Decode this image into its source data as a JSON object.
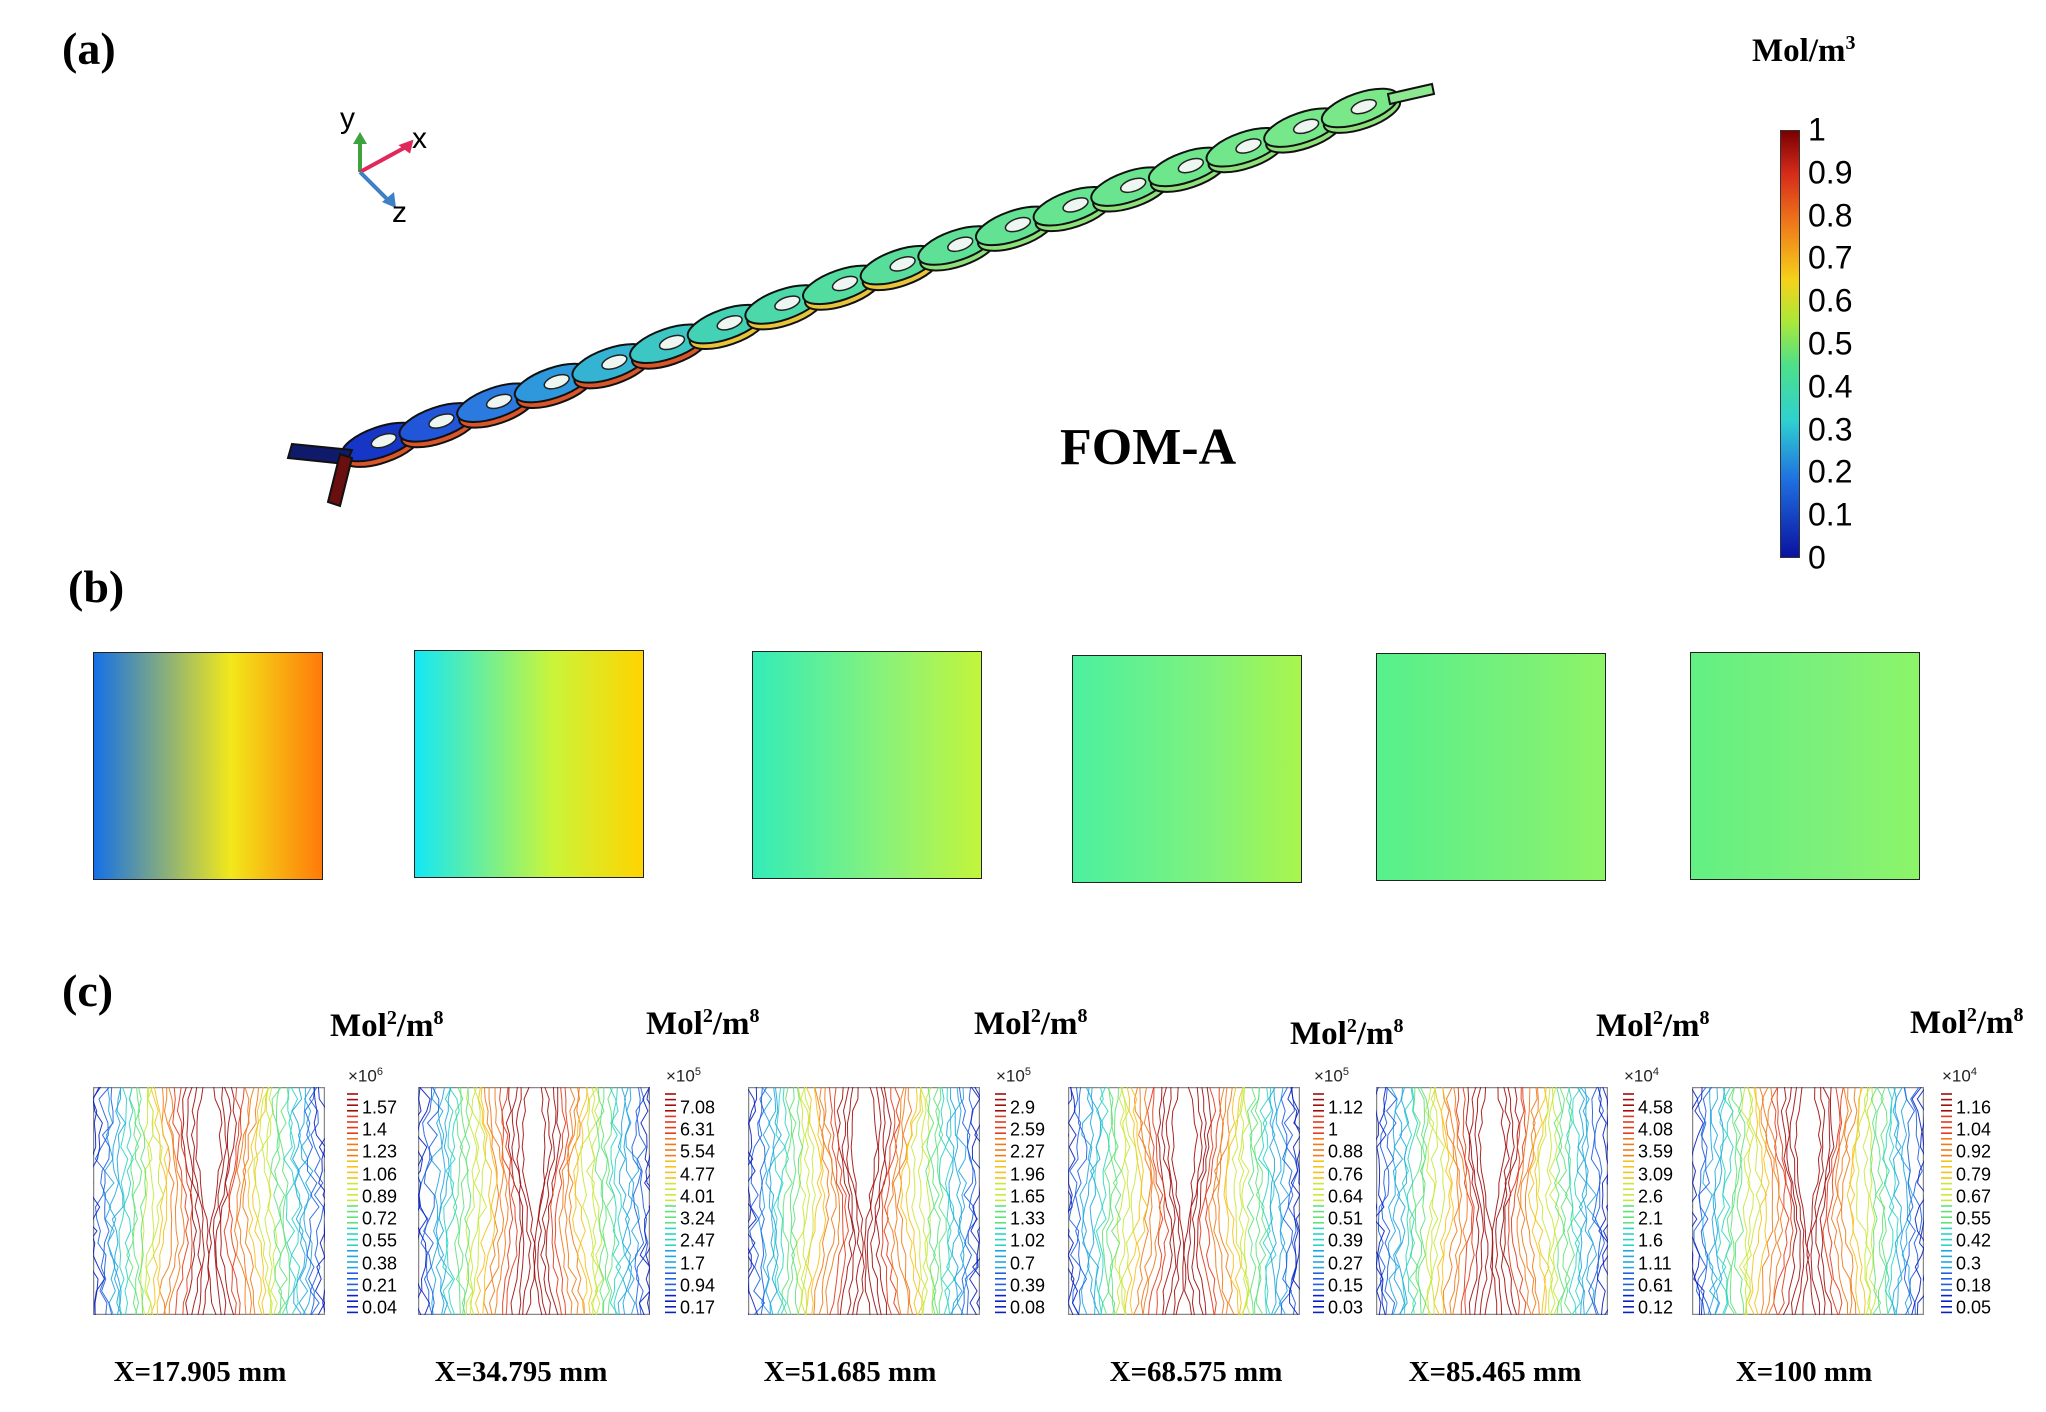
{
  "panel_a": {
    "label": "(a)",
    "title": "FOM-A",
    "axes": {
      "y": "y",
      "x": "x",
      "z": "z"
    },
    "colorbar": {
      "unit_base": "Mol/m",
      "unit_exp": "3",
      "ticks": [
        "1",
        "0.9",
        "0.8",
        "0.7",
        "0.6",
        "0.5",
        "0.4",
        "0.3",
        "0.2",
        "0.1",
        "0"
      ]
    }
  },
  "panel_b": {
    "label": "(b)",
    "sections": [
      {
        "left": "#1570e6",
        "mid": "#f2e81a",
        "right": "#ff7a0a"
      },
      {
        "left": "#12e8f5",
        "mid": "#c9f53a",
        "right": "#ffd400"
      },
      {
        "left": "#33ecb8",
        "mid": "#8df277",
        "right": "#c2f53b"
      },
      {
        "left": "#4cf0a0",
        "mid": "#80f27c",
        "right": "#a9f54c"
      },
      {
        "left": "#56f08c",
        "mid": "#78f07a",
        "right": "#8ef466"
      },
      {
        "left": "#63f083",
        "mid": "#7ef07a",
        "right": "#8cf468"
      }
    ]
  },
  "panel_c": {
    "label": "(c)",
    "plots": [
      {
        "unit_base": "Mol",
        "unit_mid": "/m",
        "exp1": "2",
        "exp2": "8",
        "mult_base": "×10",
        "mult_exp": "6",
        "ticks": [
          "1.57",
          "1.4",
          "1.23",
          "1.06",
          "0.89",
          "0.72",
          "0.55",
          "0.38",
          "0.21",
          "0.04"
        ],
        "xlabel": "X=17.905 mm"
      },
      {
        "unit_base": "Mol",
        "unit_mid": "/m",
        "exp1": "2",
        "exp2": "8",
        "mult_base": "×10",
        "mult_exp": "5",
        "ticks": [
          "7.08",
          "6.31",
          "5.54",
          "4.77",
          "4.01",
          "3.24",
          "2.47",
          "1.7",
          "0.94",
          "0.17"
        ],
        "xlabel": "X=34.795 mm"
      },
      {
        "unit_base": "Mol",
        "unit_mid": "/m",
        "exp1": "2",
        "exp2": "8",
        "mult_base": "×10",
        "mult_exp": "5",
        "ticks": [
          "2.9",
          "2.59",
          "2.27",
          "1.96",
          "1.65",
          "1.33",
          "1.02",
          "0.7",
          "0.39",
          "0.08"
        ],
        "xlabel": "X=51.685 mm"
      },
      {
        "unit_base": "Mol",
        "unit_mid": "/m",
        "exp1": "2",
        "exp2": "8",
        "mult_base": "×10",
        "mult_exp": "5",
        "ticks": [
          "1.12",
          "1",
          "0.88",
          "0.76",
          "0.64",
          "0.51",
          "0.39",
          "0.27",
          "0.15",
          "0.03"
        ],
        "xlabel": "X=68.575 mm"
      },
      {
        "unit_base": "Mol",
        "unit_mid": "/m",
        "exp1": "2",
        "exp2": "8",
        "mult_base": "×10",
        "mult_exp": "4",
        "ticks": [
          "4.58",
          "4.08",
          "3.59",
          "3.09",
          "2.6",
          "2.1",
          "1.6",
          "1.11",
          "0.61",
          "0.12"
        ],
        "xlabel": "X=85.465 mm"
      },
      {
        "unit_base": "Mol",
        "unit_mid": "/m",
        "exp1": "2",
        "exp2": "8",
        "mult_base": "×10",
        "mult_exp": "4",
        "ticks": [
          "1.16",
          "1.04",
          "0.92",
          "0.79",
          "0.67",
          "0.55",
          "0.42",
          "0.3",
          "0.18",
          "0.05"
        ],
        "xlabel": "X=100 mm"
      }
    ]
  }
}
